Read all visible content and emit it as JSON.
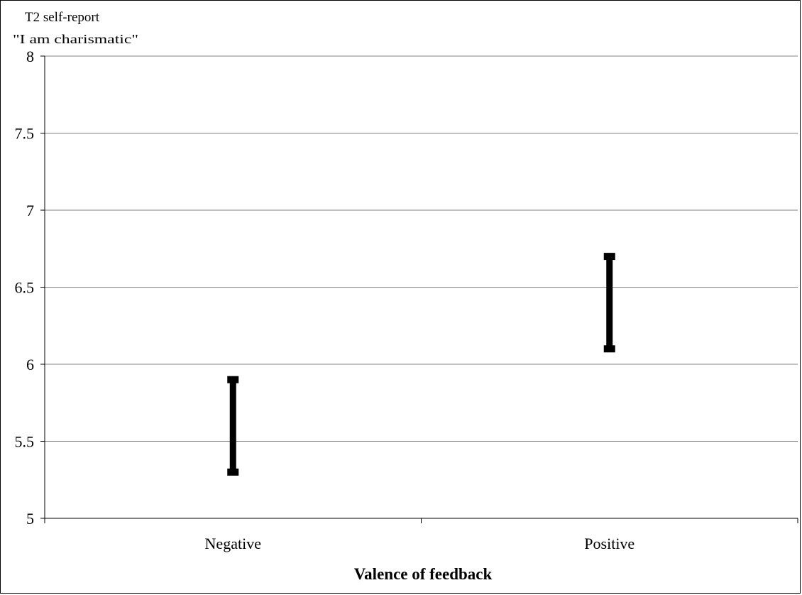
{
  "chart_data": {
    "type": "error-bar",
    "title": "",
    "ylabel_lines": [
      "T2 self-report",
      "\"I am charismatic\""
    ],
    "xlabel": "Valence of feedback",
    "categories": [
      "Negative",
      "Positive"
    ],
    "series": [
      {
        "ranges": [
          {
            "low": 5.3,
            "high": 5.9
          },
          {
            "low": 6.1,
            "high": 6.7
          }
        ]
      }
    ],
    "ylim": [
      5,
      8
    ],
    "yticks": [
      5,
      5.5,
      6,
      6.5,
      7,
      7.5,
      8
    ],
    "ytick_labels": [
      "5",
      "5.5",
      "6",
      "6.5",
      "7",
      "7.5",
      "8"
    ],
    "grid": true,
    "legend": "none",
    "colors": {
      "bars": "#000000",
      "grid": "#808080",
      "axis": "#000000",
      "background": "#ffffff"
    }
  }
}
